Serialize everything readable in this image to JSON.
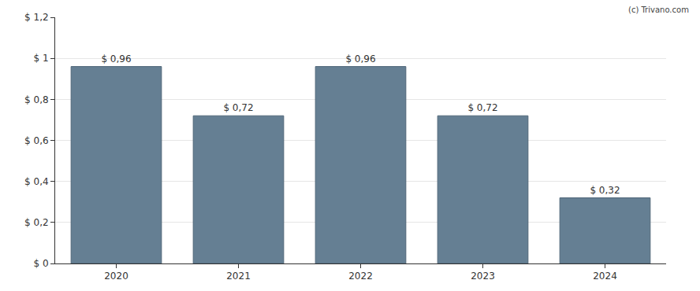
{
  "chart_data": {
    "type": "bar",
    "annotations": [
      "(c) Trivano.com"
    ],
    "categories": [
      "2020",
      "2021",
      "2022",
      "2023",
      "2024"
    ],
    "values": [
      0.96,
      0.72,
      0.96,
      0.72,
      0.32
    ],
    "value_labels": [
      "$ 0,96",
      "$ 0,72",
      "$ 0,96",
      "$ 0,72",
      "$ 0,32"
    ],
    "data_labels": true,
    "color": "#657f93",
    "ylim": [
      0,
      1.2
    ],
    "yticks": [
      {
        "value": 0,
        "label": "$ 0"
      },
      {
        "value": 0.2,
        "label": "$ 0,2"
      },
      {
        "value": 0.4,
        "label": "$ 0,4"
      },
      {
        "value": 0.6,
        "label": "$ 0,6"
      },
      {
        "value": 0.8,
        "label": "$ 0,8"
      },
      {
        "value": 1,
        "label": "$ 1"
      },
      {
        "value": 1.2,
        "label": "$ 1,2"
      }
    ],
    "grid": true
  }
}
